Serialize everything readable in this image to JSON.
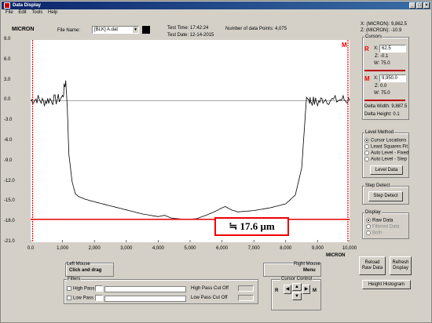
{
  "window": {
    "title": "Data Display",
    "min": "_",
    "max": "□",
    "close": "×"
  },
  "menu": [
    "File",
    "Edit",
    "Tools",
    "Help"
  ],
  "logo": "MICRON",
  "file": {
    "label": "File Name:",
    "value": "[BLK] A.dat"
  },
  "test_time": "Test Time: 17:42:24",
  "test_date": "Test Date: 12-14-2015",
  "data_points": "Number of data Points: 4,075",
  "readout": {
    "x": "X: (MICRON): 9,862.5",
    "z": "Z: (MICRON): -10.9"
  },
  "cursors": {
    "title": "Cursors",
    "r": {
      "letter": "R",
      "x_label": "X:",
      "x_value": "62.5",
      "z": "Z: -0.1",
      "w": "W: 75.0"
    },
    "m": {
      "letter": "M",
      "x_label": "X:",
      "x_value": "9,950.0",
      "z": "Z: 0.0",
      "w": "W: 75.0"
    },
    "delta_width": "Delta Width: 9,887.5",
    "delta_height": "Delta Height: 0.1"
  },
  "level_method": {
    "title": "Level Method",
    "options": [
      "Cursor Locations",
      "Least Squares Fit",
      "Auto Level - Fixed",
      "Auto Level - Step"
    ],
    "selected": 0,
    "button": "Level Data"
  },
  "step_detect": {
    "title": "Step Detect",
    "button": "Step Detect"
  },
  "display": {
    "title": "Display",
    "options": [
      "Raw Data",
      "Filtered Data",
      "Both"
    ],
    "selected": 0
  },
  "buttons": {
    "reload": "Reload Raw Data",
    "refresh": "Refresh Display",
    "histogram": "Height Histogram"
  },
  "left_mouse": {
    "title": "Left Mouse",
    "value": "Click and drag"
  },
  "right_mouse": {
    "title": "Right Mouse",
    "value": "Menu"
  },
  "filters": {
    "title": "Filters",
    "high_pass": "High Pass",
    "low_pass": "Low Pass",
    "high_cut": "High Pass Cut Off",
    "low_cut": "Low Pass Cut Off"
  },
  "cursor_control": {
    "title": "Cursor Control",
    "r": "R",
    "m": "M"
  },
  "annotation": "≒ 17.6 μm",
  "chart_data": {
    "type": "line",
    "xlabel": "MICRON",
    "ylabel": "",
    "xlim": [
      0,
      10000
    ],
    "ylim": [
      -21,
      9
    ],
    "x_ticks": [
      "0.0",
      "1,000",
      "2,000",
      "3,000",
      "4,000",
      "5,000",
      "6,000",
      "7,000",
      "8,000",
      "9,000",
      "10,000"
    ],
    "y_ticks": [
      "9.0",
      "6.0",
      "3.0",
      "0.0",
      "-3.0",
      "-6.0",
      "-9.0",
      "-12.0",
      "-15.0",
      "-18.0",
      "-21.0"
    ],
    "cursor_r_x": 62.5,
    "cursor_m_x": 9950,
    "reference_line_y": -17.6,
    "series": [
      {
        "color": "#000000",
        "x": [
          0,
          200,
          400,
          600,
          800,
          1000,
          1100,
          1150,
          1200,
          1300,
          1400,
          1500,
          1700,
          2000,
          2500,
          3000,
          3500,
          4000,
          4200,
          4400,
          4600,
          4800,
          5000,
          5200,
          5500,
          5800,
          6000,
          6100,
          6300,
          6500,
          7000,
          7500,
          8000,
          8300,
          8500,
          8600,
          8650,
          8700,
          8800,
          9000,
          9200,
          9500,
          9800,
          10000
        ],
        "y": [
          0,
          0.3,
          -0.2,
          0.2,
          0.1,
          0.5,
          3.0,
          -1.0,
          -8.0,
          -12.0,
          -13.8,
          -14.2,
          -14.6,
          -15.0,
          -15.6,
          -16.2,
          -16.8,
          -17.2,
          -17.0,
          -17.4,
          -17.5,
          -17.6,
          -17.6,
          -17.5,
          -17.0,
          -16.4,
          -15.9,
          -15.7,
          -16.2,
          -16.5,
          -16.3,
          -15.9,
          -15.3,
          -14.0,
          -10.0,
          -3.0,
          0.5,
          0.2,
          0.0,
          -0.3,
          0.3,
          0.0,
          0.2,
          0.0
        ]
      }
    ]
  }
}
